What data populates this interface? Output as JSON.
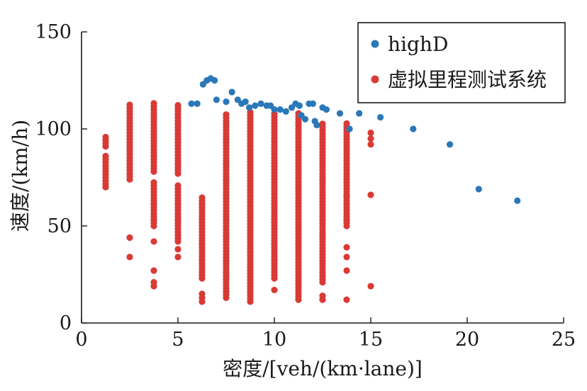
{
  "chart_data": {
    "type": "scatter",
    "xlabel": "密度/[veh/(km·lane)]",
    "ylabel": "速度/(km/h)",
    "xlim": [
      0,
      25
    ],
    "ylim": [
      0,
      150
    ],
    "xticks": [
      0,
      5,
      10,
      15,
      20,
      25
    ],
    "yticks": [
      0,
      50,
      100,
      150
    ],
    "legend_position": "top-right",
    "series": [
      {
        "name": "highD",
        "color": "#2a78b8",
        "points": [
          [
            5.7,
            113
          ],
          [
            6.0,
            113
          ],
          [
            6.3,
            123
          ],
          [
            6.5,
            125
          ],
          [
            6.7,
            126
          ],
          [
            6.9,
            125
          ],
          [
            7.0,
            115
          ],
          [
            7.5,
            114
          ],
          [
            7.8,
            119
          ],
          [
            8.1,
            115
          ],
          [
            8.3,
            113
          ],
          [
            8.5,
            114
          ],
          [
            8.7,
            111
          ],
          [
            9.0,
            112
          ],
          [
            9.3,
            113
          ],
          [
            9.6,
            112
          ],
          [
            9.8,
            112
          ],
          [
            10.0,
            110
          ],
          [
            10.3,
            110
          ],
          [
            10.6,
            109
          ],
          [
            10.9,
            111
          ],
          [
            11.1,
            113
          ],
          [
            11.3,
            112
          ],
          [
            11.4,
            107
          ],
          [
            11.6,
            105
          ],
          [
            11.8,
            113
          ],
          [
            12.0,
            113
          ],
          [
            12.1,
            104
          ],
          [
            12.2,
            102
          ],
          [
            12.5,
            111
          ],
          [
            12.7,
            110
          ],
          [
            13.4,
            108
          ],
          [
            13.9,
            100
          ],
          [
            14.4,
            108
          ],
          [
            15.5,
            106
          ],
          [
            17.2,
            100
          ],
          [
            19.1,
            92
          ],
          [
            20.6,
            69
          ],
          [
            22.6,
            63
          ]
        ]
      },
      {
        "name": "虚拟里程测试系统",
        "color": "#d93a36",
        "columns": [
          {
            "x": 1.25,
            "ranges": [
              [
                70,
                87
              ],
              [
                91,
                97
              ]
            ],
            "extra": []
          },
          {
            "x": 2.5,
            "ranges": [
              [
                74,
                113
              ]
            ],
            "extra": [
              34,
              44
            ]
          },
          {
            "x": 3.75,
            "ranges": [
              [
                78,
                114
              ],
              [
                50,
                73
              ]
            ],
            "extra": [
              19,
              21,
              27,
              42
            ]
          },
          {
            "x": 5.0,
            "ranges": [
              [
                77,
                113
              ],
              [
                42,
                72
              ]
            ],
            "extra": [
              34,
              38
            ]
          },
          {
            "x": 6.25,
            "ranges": [
              [
                23,
                65
              ]
            ],
            "extra": [
              11,
              13,
              15
            ]
          },
          {
            "x": 7.5,
            "ranges": [
              [
                13,
                108
              ]
            ],
            "extra": []
          },
          {
            "x": 8.75,
            "ranges": [
              [
                11,
                110
              ]
            ],
            "extra": []
          },
          {
            "x": 10.0,
            "ranges": [
              [
                23,
                108
              ]
            ],
            "extra": [
              17
            ]
          },
          {
            "x": 11.25,
            "ranges": [
              [
                12,
                108
              ]
            ],
            "extra": []
          },
          {
            "x": 12.5,
            "ranges": [
              [
                21,
                103
              ]
            ],
            "extra": [
              12,
              14
            ]
          },
          {
            "x": 13.75,
            "ranges": [
              [
                50,
                103
              ]
            ],
            "extra": [
              12,
              27,
              34,
              39,
              53,
              65
            ]
          },
          {
            "x": 15.0,
            "ranges": [],
            "extra": [
              19,
              66,
              92,
              95,
              98
            ]
          }
        ]
      }
    ]
  }
}
